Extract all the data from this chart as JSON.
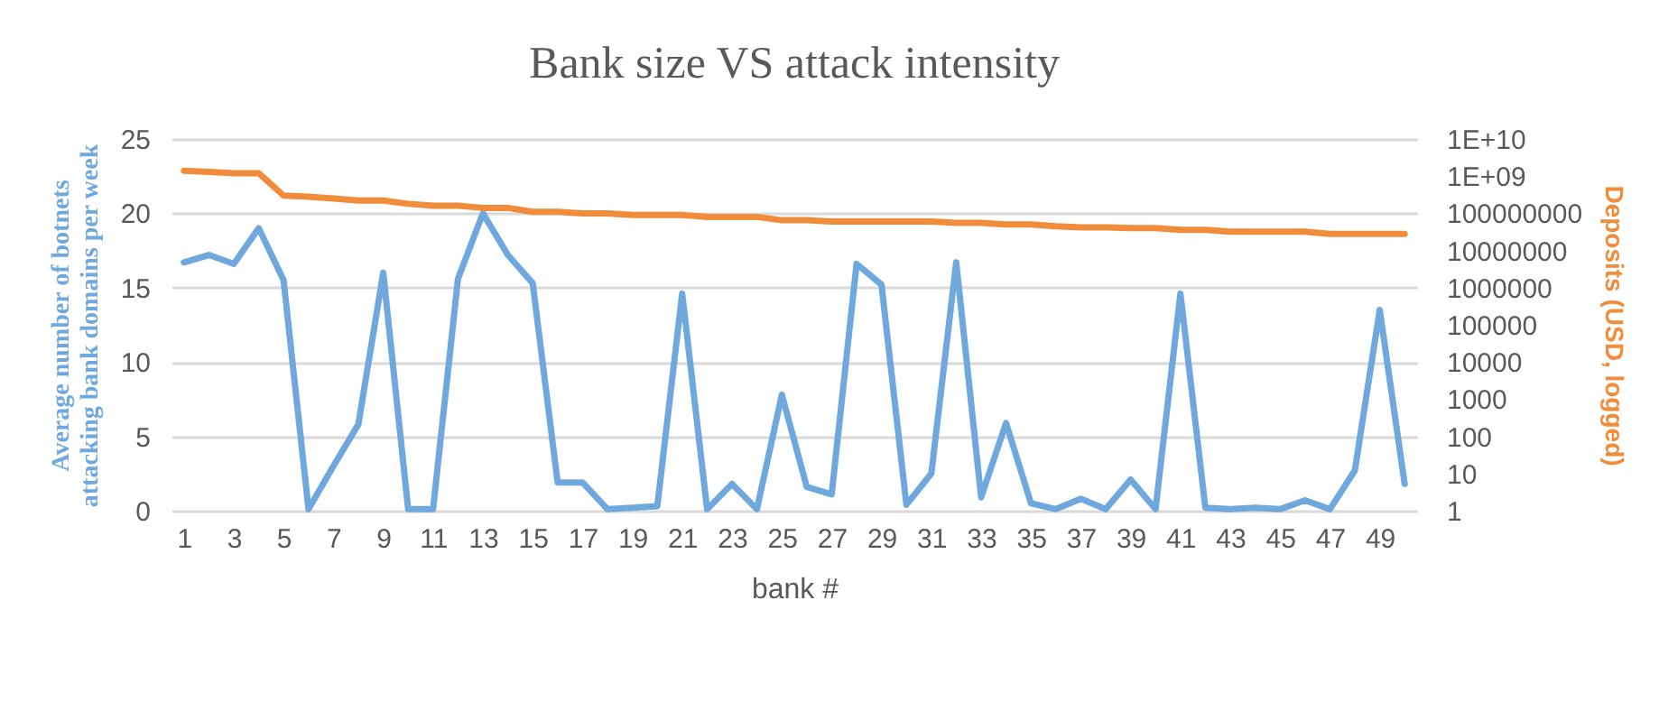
{
  "chart_data": {
    "type": "line",
    "title": "Bank size VS attack intensity",
    "xlabel": "bank #",
    "ylabel": "Average number of botnets attacking bank domains per week",
    "y2label": "Deposits (USD, logged)",
    "x": [
      1,
      2,
      3,
      4,
      5,
      6,
      7,
      8,
      9,
      10,
      11,
      12,
      13,
      14,
      15,
      16,
      17,
      18,
      19,
      20,
      21,
      22,
      23,
      24,
      25,
      26,
      27,
      28,
      29,
      30,
      31,
      32,
      33,
      34,
      35,
      36,
      37,
      38,
      39,
      40,
      41,
      42,
      43,
      44,
      45,
      46,
      47,
      48,
      49,
      50
    ],
    "xlim": [
      0.5,
      50.5
    ],
    "xticks": [
      1,
      3,
      5,
      7,
      9,
      11,
      13,
      15,
      17,
      19,
      21,
      23,
      25,
      27,
      29,
      31,
      33,
      35,
      37,
      39,
      41,
      43,
      45,
      47,
      49
    ],
    "ylim": [
      0,
      25
    ],
    "yticks": [
      0,
      5,
      10,
      15,
      20,
      25
    ],
    "y2lim": [
      1,
      10000000000
    ],
    "y2ticks": [
      1,
      10,
      100,
      1000,
      10000,
      100000,
      1000000,
      10000000,
      100000000,
      {
        "value": 1000000000,
        "label": "1E+09"
      },
      {
        "value": 10000000000,
        "label": "1E+10"
      }
    ],
    "log": "y2",
    "grid": "y",
    "line_style": "solid",
    "marker": "none",
    "series": [
      {
        "color": "#6fa8dc",
        "values": [
          16.7,
          17.2,
          16.6,
          19,
          15.5,
          0.1,
          3,
          5.8,
          16,
          0.1,
          0.1,
          15.6,
          20,
          17.2,
          15.3,
          1.9,
          1.9,
          0.1,
          0.2,
          0.3,
          14.6,
          0.1,
          1.8,
          0.1,
          7.8,
          1.6,
          1.1,
          16.6,
          15.2,
          0.4,
          2.5,
          16.7,
          0.9,
          5.9,
          0.5,
          0.1,
          0.8,
          0.1,
          2.1,
          0.1,
          14.6,
          0.2,
          0.1,
          0.2,
          0.1,
          0.7,
          0.1,
          2.7,
          13.5,
          1.8
        ]
      },
      {
        "color": "#f08c3a",
        "axis": "y2",
        "values": [
          1400000000,
          1300000000,
          1200000000,
          1200000000,
          300000000,
          280000000,
          250000000,
          220000000,
          220000000,
          180000000,
          160000000,
          160000000,
          140000000,
          140000000,
          110000000,
          110000000,
          100000000,
          100000000,
          90000000,
          90000000,
          90000000,
          80000000,
          80000000,
          80000000,
          65000000,
          65000000,
          60000000,
          60000000,
          60000000,
          60000000,
          60000000,
          55000000,
          55000000,
          50000000,
          50000000,
          45000000,
          42000000,
          42000000,
          40000000,
          40000000,
          36000000,
          36000000,
          32000000,
          32000000,
          32000000,
          32000000,
          28000000,
          28000000,
          28000000,
          28000000
        ]
      }
    ]
  }
}
